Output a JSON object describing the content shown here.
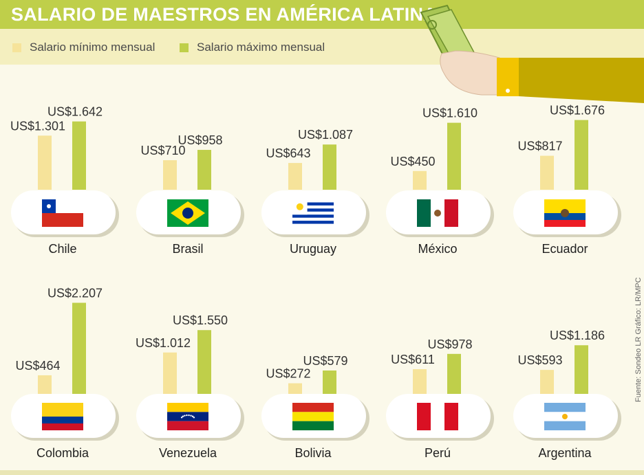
{
  "title": "SALARIO DE MAESTROS EN AMÉRICA LATINA",
  "legend": [
    {
      "label": "Salario mínimo mensual",
      "color": "#f6e39a"
    },
    {
      "label": "Salario máximo mensual",
      "color": "#bfcf4a"
    }
  ],
  "source": "Fuente: Sondeo LR  Gráfico: LR/MPC",
  "colors": {
    "min_bar": "#f6e39a",
    "max_bar": "#bfcf4a",
    "title_band": "#bfcf4a",
    "legend_band": "#f4efbf"
  },
  "icons": [
    "hand-with-money-icon"
  ],
  "chart_data": {
    "type": "bar",
    "title": "SALARIO DE MAESTROS EN AMÉRICA LATINA",
    "unit": "US$",
    "series_names": [
      "Salario mínimo mensual",
      "Salario máximo mensual"
    ],
    "countries": [
      {
        "name": "Chile",
        "min": 1301,
        "max": 1642,
        "min_label": "US$1.301",
        "max_label": "US$1.642",
        "flag": "chile-flag-icon"
      },
      {
        "name": "Brasil",
        "min": 710,
        "max": 958,
        "min_label": "US$710",
        "max_label": "US$958",
        "flag": "brazil-flag-icon"
      },
      {
        "name": "Uruguay",
        "min": 643,
        "max": 1087,
        "min_label": "US$643",
        "max_label": "US$1.087",
        "flag": "uruguay-flag-icon"
      },
      {
        "name": "México",
        "min": 450,
        "max": 1610,
        "min_label": "US$450",
        "max_label": "US$1.610",
        "flag": "mexico-flag-icon"
      },
      {
        "name": "Ecuador",
        "min": 817,
        "max": 1676,
        "min_label": "US$817",
        "max_label": "US$1.676",
        "flag": "ecuador-flag-icon"
      },
      {
        "name": "Colombia",
        "min": 464,
        "max": 2207,
        "min_label": "US$464",
        "max_label": "US$2.207",
        "flag": "colombia-flag-icon"
      },
      {
        "name": "Venezuela",
        "min": 1012,
        "max": 1550,
        "min_label": "US$1.012",
        "max_label": "US$1.550",
        "flag": "venezuela-flag-icon"
      },
      {
        "name": "Bolivia",
        "min": 272,
        "max": 579,
        "min_label": "US$272",
        "max_label": "US$579",
        "flag": "bolivia-flag-icon"
      },
      {
        "name": "Perú",
        "min": 611,
        "max": 978,
        "min_label": "US$611",
        "max_label": "US$978",
        "flag": "peru-flag-icon"
      },
      {
        "name": "Argentina",
        "min": 593,
        "max": 1186,
        "min_label": "US$593",
        "max_label": "US$1.186",
        "flag": "argentina-flag-icon"
      }
    ]
  }
}
